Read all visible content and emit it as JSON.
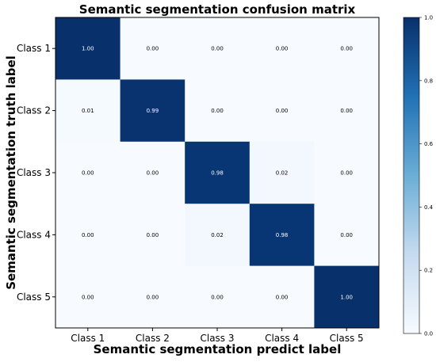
{
  "chart_data": {
    "type": "heatmap",
    "title": "Semantic segmentation confusion matrix",
    "xlabel": "Semantic segmentation predict label",
    "ylabel": "Semantic segmentation truth label",
    "x_categories": [
      "Class 1",
      "Class 2",
      "Class 3",
      "Class 4",
      "Class 5"
    ],
    "y_categories": [
      "Class 1",
      "Class 2",
      "Class 3",
      "Class 4",
      "Class 5"
    ],
    "values": [
      [
        1.0,
        0.0,
        0.0,
        0.0,
        0.0
      ],
      [
        0.01,
        0.99,
        0.0,
        0.0,
        0.0
      ],
      [
        0.0,
        0.0,
        0.98,
        0.02,
        0.0
      ],
      [
        0.0,
        0.0,
        0.02,
        0.98,
        0.0
      ],
      [
        0.0,
        0.0,
        0.0,
        0.0,
        1.0
      ]
    ],
    "value_labels": [
      [
        "1.00",
        "0.00",
        "0.00",
        "0.00",
        "0.00"
      ],
      [
        "0.01",
        "0.99",
        "0.00",
        "0.00",
        "0.00"
      ],
      [
        "0.00",
        "0.00",
        "0.98",
        "0.02",
        "0.00"
      ],
      [
        "0.00",
        "0.00",
        "0.02",
        "0.98",
        "0.00"
      ],
      [
        "0.00",
        "0.00",
        "0.00",
        "0.00",
        "1.00"
      ]
    ],
    "colormap": "Blues",
    "colorbar": {
      "range": [
        0.0,
        1.0
      ],
      "ticks": [
        "0.0",
        "0.2",
        "0.4",
        "0.6",
        "0.8",
        "1.0"
      ]
    },
    "colors": {
      "low": "#f7fbff",
      "high": "#08306b"
    }
  }
}
